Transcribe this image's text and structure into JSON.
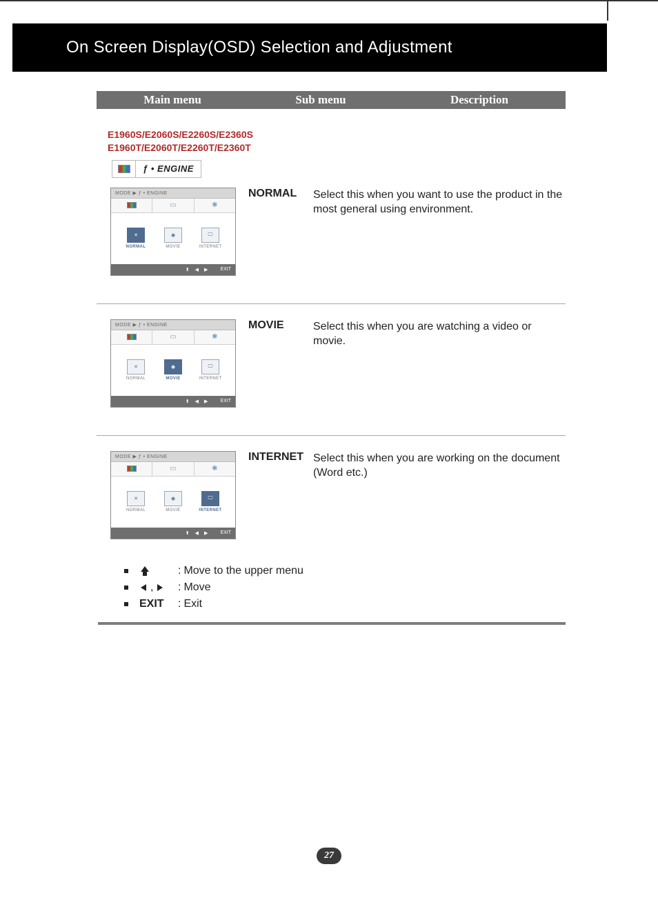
{
  "page": {
    "title": "On Screen Display(OSD) Selection and Adjustment",
    "number": "27"
  },
  "menu_header": {
    "main": "Main menu",
    "sub": "Sub menu",
    "desc": "Description"
  },
  "models": {
    "line1": "E1960S/E2060S/E2260S/E2360S",
    "line2": "E1960T/E2060T/E2260T/E2360T"
  },
  "engine_label": "ENGINE",
  "engine_prefix": "ƒ •",
  "osd": {
    "title": "MODE ▶ ƒ • ENGINE",
    "modes": [
      "NORMAL",
      "MOVIE",
      "INTERNET"
    ],
    "foot_exit": "EXIT",
    "foot_up": "⬆",
    "foot_left": "◀",
    "foot_right": "▶"
  },
  "rows": [
    {
      "sub": "NORMAL",
      "desc": "Select this when you want to use the product in the most general using environment.",
      "selected": 0
    },
    {
      "sub": "MOVIE",
      "desc": "Select this when you are watching a video or movie.",
      "selected": 1
    },
    {
      "sub": "INTERNET",
      "desc": "Select this when you are working on the document (Word etc.)",
      "selected": 2
    }
  ],
  "legend": {
    "up": "Move to the upper menu",
    "move": "Move",
    "exit_key": "EXIT",
    "exit": "Exit"
  },
  "colors": {
    "header_bg": "#6f6f6f",
    "model_text": "#b12a2a",
    "osd_selected": "#4f6b8f",
    "rule": "#a8a8a8",
    "section_end": "#7d7d7d"
  }
}
